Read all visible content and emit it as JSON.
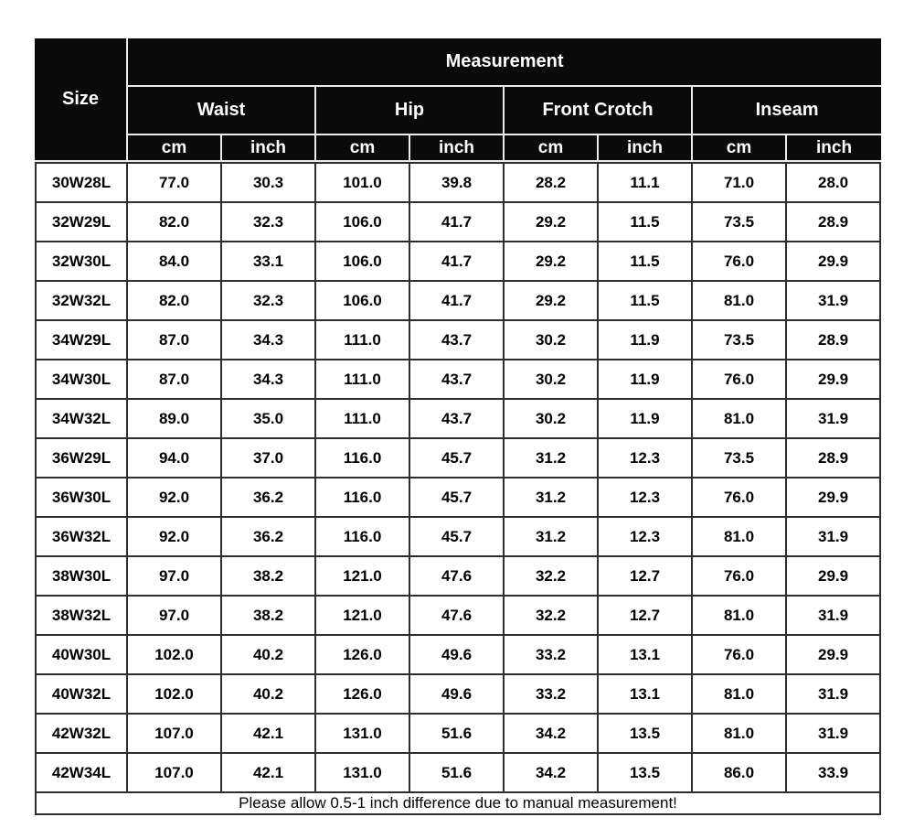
{
  "colors": {
    "header_bg": "#0a0a0a",
    "header_text": "#ffffff",
    "header_divider": "#ececec",
    "grid_line": "#2e2e2e",
    "body_bg": "#ffffff",
    "body_text": "#000000",
    "page_bg": "#ffffff"
  },
  "chart_data": {
    "type": "table",
    "title": "Measurement",
    "corner_header": "Size",
    "measurement_header": "Measurement",
    "groups": [
      {
        "label": "Waist"
      },
      {
        "label": "Hip"
      },
      {
        "label": "Front Crotch"
      },
      {
        "label": "Inseam"
      }
    ],
    "unit_headers": [
      "cm",
      "inch",
      "cm",
      "inch",
      "cm",
      "inch",
      "cm",
      "inch"
    ],
    "rows": [
      {
        "size": "30W28L",
        "values": [
          "77.0",
          "30.3",
          "101.0",
          "39.8",
          "28.2",
          "11.1",
          "71.0",
          "28.0"
        ]
      },
      {
        "size": "32W29L",
        "values": [
          "82.0",
          "32.3",
          "106.0",
          "41.7",
          "29.2",
          "11.5",
          "73.5",
          "28.9"
        ]
      },
      {
        "size": "32W30L",
        "values": [
          "84.0",
          "33.1",
          "106.0",
          "41.7",
          "29.2",
          "11.5",
          "76.0",
          "29.9"
        ]
      },
      {
        "size": "32W32L",
        "values": [
          "82.0",
          "32.3",
          "106.0",
          "41.7",
          "29.2",
          "11.5",
          "81.0",
          "31.9"
        ]
      },
      {
        "size": "34W29L",
        "values": [
          "87.0",
          "34.3",
          "111.0",
          "43.7",
          "30.2",
          "11.9",
          "73.5",
          "28.9"
        ]
      },
      {
        "size": "34W30L",
        "values": [
          "87.0",
          "34.3",
          "111.0",
          "43.7",
          "30.2",
          "11.9",
          "76.0",
          "29.9"
        ]
      },
      {
        "size": "34W32L",
        "values": [
          "89.0",
          "35.0",
          "111.0",
          "43.7",
          "30.2",
          "11.9",
          "81.0",
          "31.9"
        ]
      },
      {
        "size": "36W29L",
        "values": [
          "94.0",
          "37.0",
          "116.0",
          "45.7",
          "31.2",
          "12.3",
          "73.5",
          "28.9"
        ]
      },
      {
        "size": "36W30L",
        "values": [
          "92.0",
          "36.2",
          "116.0",
          "45.7",
          "31.2",
          "12.3",
          "76.0",
          "29.9"
        ]
      },
      {
        "size": "36W32L",
        "values": [
          "92.0",
          "36.2",
          "116.0",
          "45.7",
          "31.2",
          "12.3",
          "81.0",
          "31.9"
        ]
      },
      {
        "size": "38W30L",
        "values": [
          "97.0",
          "38.2",
          "121.0",
          "47.6",
          "32.2",
          "12.7",
          "76.0",
          "29.9"
        ]
      },
      {
        "size": "38W32L",
        "values": [
          "97.0",
          "38.2",
          "121.0",
          "47.6",
          "32.2",
          "12.7",
          "81.0",
          "31.9"
        ]
      },
      {
        "size": "40W30L",
        "values": [
          "102.0",
          "40.2",
          "126.0",
          "49.6",
          "33.2",
          "13.1",
          "76.0",
          "29.9"
        ]
      },
      {
        "size": "40W32L",
        "values": [
          "102.0",
          "40.2",
          "126.0",
          "49.6",
          "33.2",
          "13.1",
          "81.0",
          "31.9"
        ]
      },
      {
        "size": "42W32L",
        "values": [
          "107.0",
          "42.1",
          "131.0",
          "51.6",
          "34.2",
          "13.5",
          "81.0",
          "31.9"
        ]
      },
      {
        "size": "42W34L",
        "values": [
          "107.0",
          "42.1",
          "131.0",
          "51.6",
          "34.2",
          "13.5",
          "86.0",
          "33.9"
        ]
      }
    ],
    "footer_note": "Please allow 0.5-1 inch difference due to manual measurement!"
  }
}
